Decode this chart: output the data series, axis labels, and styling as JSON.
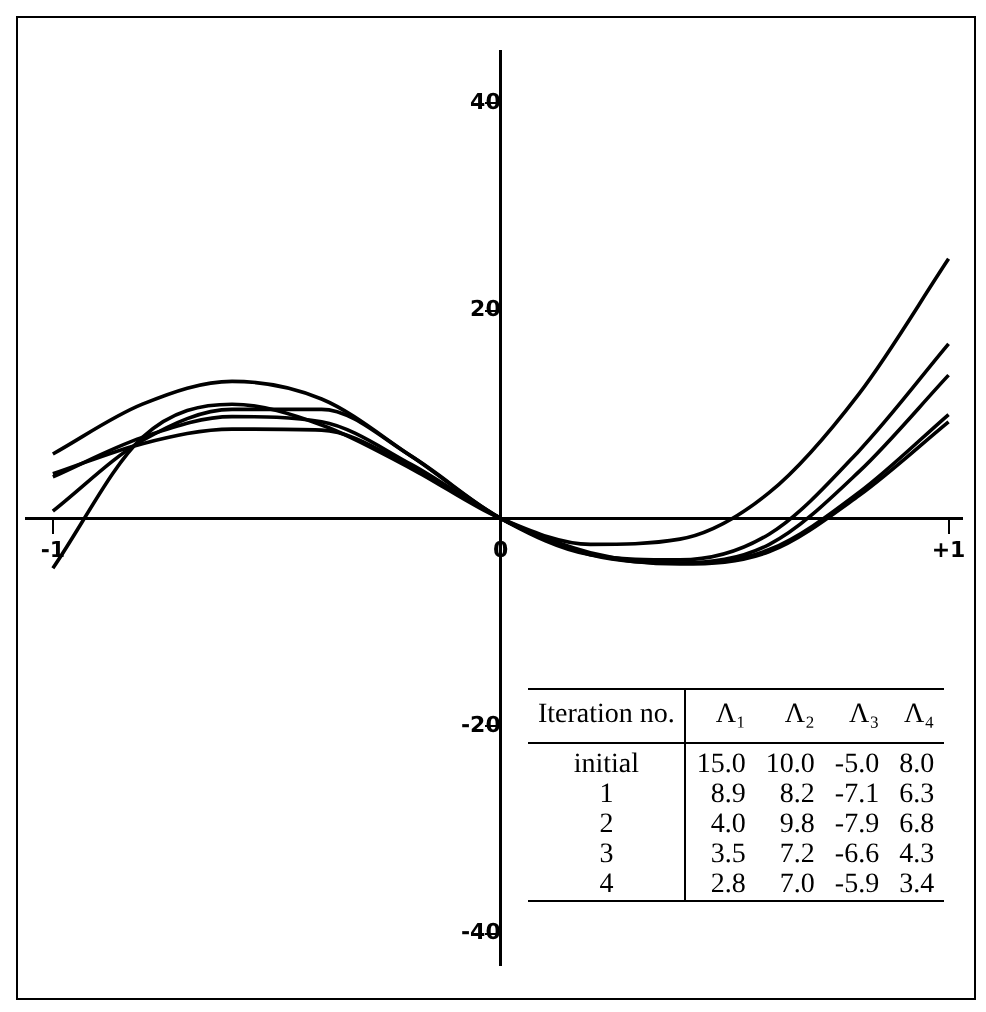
{
  "chart_data": {
    "type": "line",
    "x": [
      -1,
      -0.8,
      -0.6,
      -0.4,
      -0.2,
      0,
      0.2,
      0.4,
      0.6,
      0.8,
      1
    ],
    "series": [
      {
        "color": "#000000",
        "values": [
          -4.8,
          7.8,
          11,
          9,
          4.8,
          0,
          -2.5,
          -2,
          2.5,
          12,
          25
        ]
      },
      {
        "color": "#000000",
        "values": [
          6.2,
          11,
          13.2,
          11.5,
          6,
          0,
          -3.5,
          -4,
          -1.5,
          6.5,
          16.8
        ]
      },
      {
        "color": "#000000",
        "values": [
          0.7,
          7.5,
          10.5,
          10.5,
          6,
          0,
          -3.5,
          -4.3,
          -2.5,
          4.5,
          13.8
        ]
      },
      {
        "color": "#000000",
        "values": [
          4.3,
          7.2,
          8.6,
          8.5,
          5,
          0,
          -3.3,
          -4.3,
          -3,
          2.5,
          10
        ]
      },
      {
        "color": "#000000",
        "values": [
          4,
          7.8,
          9.8,
          9.3,
          5.2,
          0,
          -3.4,
          -4.4,
          -3.2,
          2.2,
          9.3
        ]
      }
    ],
    "xlim": [
      -1.06,
      1.03
    ],
    "ylim": [
      -43,
      45
    ],
    "xticks": [
      {
        "value": -1,
        "label": "-1"
      },
      {
        "value": 0,
        "label": "0"
      },
      {
        "value": 1,
        "label": "+1"
      }
    ],
    "yticks": [
      -40,
      -20,
      20,
      40
    ],
    "grid": false,
    "legend": false,
    "marker": "none",
    "line_style": "solid",
    "annotations": [
      "Iteration no.  Λ₁  Λ₂  Λ₃  Λ₄",
      "initial  15.0  10.0  -5.0  8.0",
      "1  8.9  8.2  -7.1  6.3",
      "2  4.0  9.8  -7.9  6.8",
      "3  3.5  7.2  -6.6  4.3",
      "4  2.8  7.0  -5.9  3.4"
    ]
  }
}
